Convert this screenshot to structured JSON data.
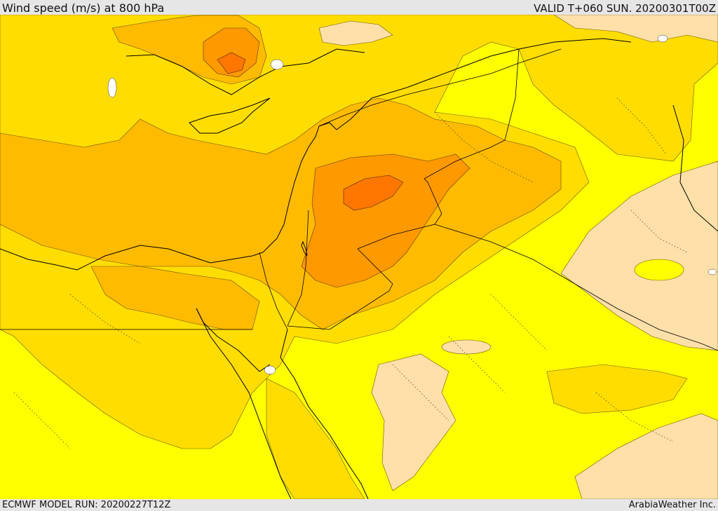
{
  "header": {
    "title": "Wind speed (m/s) at 800 hPa",
    "valid": "VALID T+060 SUN. 20200301T00Z"
  },
  "footer": {
    "model_run": "ECMWF MODEL RUN: 20200227T12Z",
    "credit": "ArabiaWeather Inc."
  },
  "colors": {
    "low": "#ffff00",
    "medium": "#ffdd00",
    "high": "#ffbb00",
    "strong": "#ff9900",
    "very_strong": "#ff7700",
    "calm": "#ffe0a8",
    "land_outline": "#000000"
  }
}
